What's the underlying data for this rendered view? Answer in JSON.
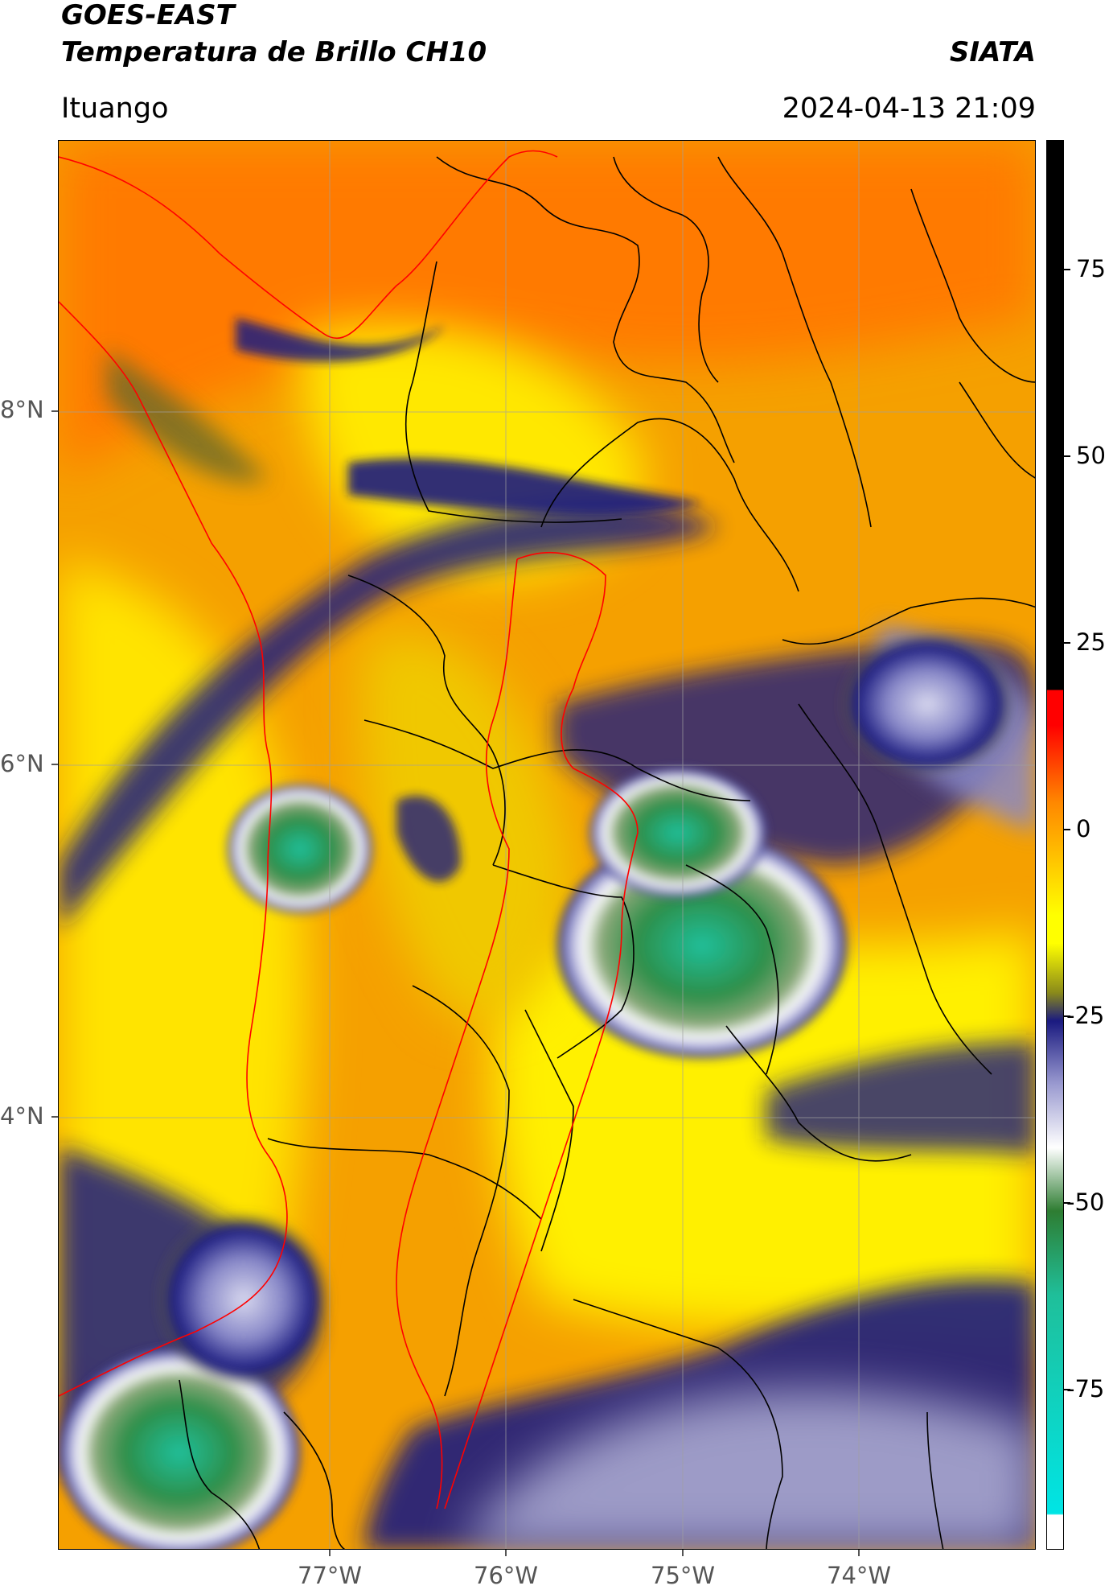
{
  "header": {
    "satellite": "GOES-EAST",
    "product": "Temperatura de Brillo CH10",
    "organization": "SIATA",
    "region": "Ituango",
    "datetime": "2024-04-13 21:09"
  },
  "map": {
    "lat_labels": [
      "8°N",
      "6°N",
      "4°N"
    ],
    "lon_labels": [
      "77°W",
      "76°W",
      "75°W",
      "74°W"
    ]
  },
  "colorbar": {
    "tick_labels": [
      "75",
      "50",
      "25",
      "0",
      "-25",
      "-50",
      "-75"
    ],
    "colors": {
      "black": "#000000",
      "red": "#ff0000",
      "orange": "#ff8800",
      "yellow": "#ffff00",
      "olive": "#8a8a1a",
      "navy": "#1a1a80",
      "lavender": "#9a9ad0",
      "white": "#ffffff",
      "green": "#2e7d32",
      "teal": "#1fbf9a",
      "cyan": "#00e5e5"
    }
  }
}
